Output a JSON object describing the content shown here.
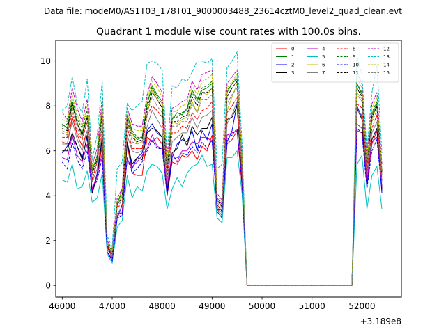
{
  "chart_data": {
    "type": "line",
    "suptitle": "Data file: modeM0/AS1T03_178T01_9000003488_23614cztM0_level2_quad_clean.evt",
    "title": "Quadrant 1 module wise count rates with 100.0s bins.",
    "xlabel": "",
    "ylabel": "",
    "offset_label": "+3.189e8",
    "xlim": [
      45870,
      52790
    ],
    "ylim": [
      -0.52,
      10.92
    ],
    "xticks": [
      46000,
      47000,
      48000,
      49000,
      50000,
      51000,
      52000
    ],
    "xtick_labels": [
      "46000",
      "47000",
      "48000",
      "49000",
      "50000",
      "51000",
      "52000"
    ],
    "yticks": [
      0,
      2,
      4,
      6,
      8,
      10
    ],
    "ytick_labels": [
      "0",
      "2",
      "4",
      "6",
      "8",
      "10"
    ],
    "grid": false,
    "legend_position": "top-right",
    "x_start": 46000,
    "x_step": 100,
    "gap_region": [
      49700,
      51700
    ],
    "series": [
      {
        "name": "0",
        "color": "#ff0000",
        "dash": "solid",
        "values": [
          6.4,
          6.3,
          7.5,
          6.7,
          6.2,
          6.9,
          4.2,
          5.0,
          6.2,
          1.8,
          1.2,
          3.1,
          3.1,
          6.3,
          5.0,
          4.9,
          4.9,
          6.6,
          6.4,
          6.6,
          6.3,
          4.0,
          5.5,
          5.4,
          5.8,
          5.7,
          6.0,
          5.6,
          6.2,
          6.0,
          6.7,
          3.4,
          3.1,
          6.3,
          6.5,
          6.9,
          4.4,
          0.0,
          0.0,
          0.0,
          0.0,
          0.0,
          0.0,
          0.0,
          0.0,
          0.0,
          0.0,
          0.0,
          0.0,
          0.0,
          0.0,
          0.0,
          0.0,
          0.0,
          0.0,
          0.0,
          0.0,
          0.0,
          0.0,
          7.2,
          7.0,
          4.5,
          6.3,
          6.9,
          4.4
        ]
      },
      {
        "name": "1",
        "color": "#008000",
        "dash": "solid",
        "values": [
          7.2,
          7.0,
          8.2,
          7.2,
          6.8,
          7.6,
          5.2,
          5.7,
          7.8,
          1.9,
          1.5,
          3.6,
          4.3,
          7.6,
          6.8,
          6.5,
          6.6,
          8.1,
          8.9,
          8.5,
          8.2,
          5.2,
          7.4,
          7.7,
          7.6,
          7.9,
          8.7,
          8.3,
          8.7,
          8.8,
          9.0,
          3.8,
          3.5,
          8.6,
          9.0,
          9.2,
          5.6,
          0.0,
          0.0,
          0.0,
          0.0,
          0.0,
          0.0,
          0.0,
          0.0,
          0.0,
          0.0,
          0.0,
          0.0,
          0.0,
          0.0,
          0.0,
          0.0,
          0.0,
          0.0,
          0.0,
          0.0,
          0.0,
          0.0,
          9.0,
          8.5,
          5.4,
          7.6,
          8.1,
          5.1
        ]
      },
      {
        "name": "2",
        "color": "#0000ff",
        "dash": "solid",
        "values": [
          5.9,
          6.2,
          6.6,
          6.2,
          5.7,
          6.6,
          4.1,
          5.0,
          6.6,
          1.5,
          1.1,
          3.0,
          3.6,
          6.4,
          5.2,
          5.7,
          5.9,
          6.9,
          7.2,
          6.8,
          6.6,
          4.1,
          5.7,
          6.3,
          6.5,
          6.4,
          6.9,
          6.0,
          6.9,
          6.5,
          7.2,
          3.3,
          3.0,
          6.4,
          6.9,
          8.1,
          4.6,
          0.0,
          0.0,
          0.0,
          0.0,
          0.0,
          0.0,
          0.0,
          0.0,
          0.0,
          0.0,
          0.0,
          0.0,
          0.0,
          0.0,
          0.0,
          0.0,
          0.0,
          0.0,
          0.0,
          0.0,
          0.0,
          0.0,
          8.0,
          7.5,
          4.6,
          6.5,
          7.0,
          4.1
        ]
      },
      {
        "name": "3",
        "color": "#000000",
        "dash": "solid",
        "values": [
          6.0,
          6.0,
          6.8,
          6.2,
          5.6,
          6.7,
          4.1,
          4.9,
          6.5,
          1.7,
          1.3,
          3.2,
          3.2,
          6.4,
          5.4,
          5.7,
          5.6,
          6.8,
          7.0,
          6.9,
          6.6,
          4.2,
          5.9,
          6.1,
          6.7,
          6.2,
          7.1,
          6.7,
          7.0,
          7.0,
          7.5,
          3.6,
          3.3,
          7.4,
          7.5,
          8.0,
          4.6,
          0.0,
          0.0,
          0.0,
          0.0,
          0.0,
          0.0,
          0.0,
          0.0,
          0.0,
          0.0,
          0.0,
          0.0,
          0.0,
          0.0,
          0.0,
          0.0,
          0.0,
          0.0,
          0.0,
          0.0,
          0.0,
          0.0,
          7.9,
          7.4,
          4.4,
          6.5,
          7.0,
          4.3
        ]
      },
      {
        "name": "4",
        "color": "#bf00bf",
        "dash": "solid",
        "values": [
          5.7,
          5.6,
          6.7,
          5.8,
          5.5,
          6.3,
          4.3,
          4.9,
          5.9,
          1.5,
          1.2,
          3.1,
          3.3,
          5.6,
          5.3,
          5.5,
          5.8,
          6.1,
          6.7,
          6.2,
          6.1,
          4.4,
          5.9,
          5.5,
          6.0,
          6.0,
          6.4,
          6.3,
          6.6,
          6.6,
          6.4,
          3.9,
          3.6,
          6.7,
          6.8,
          6.9,
          4.7,
          0.0,
          0.0,
          0.0,
          0.0,
          0.0,
          0.0,
          0.0,
          0.0,
          0.0,
          0.0,
          0.0,
          0.0,
          0.0,
          0.0,
          0.0,
          0.0,
          0.0,
          0.0,
          0.0,
          0.0,
          0.0,
          0.0,
          6.9,
          6.8,
          4.6,
          6.4,
          6.6,
          4.4
        ]
      },
      {
        "name": "5",
        "color": "#00bfbf",
        "dash": "solid",
        "values": [
          4.7,
          4.6,
          5.4,
          4.3,
          4.4,
          5.1,
          3.7,
          3.9,
          5.0,
          1.4,
          1.0,
          2.6,
          2.9,
          4.9,
          3.9,
          4.4,
          4.2,
          5.1,
          5.4,
          5.3,
          5.0,
          3.4,
          4.3,
          4.8,
          4.4,
          5.0,
          5.3,
          5.4,
          5.8,
          5.3,
          5.4,
          3.0,
          2.8,
          5.7,
          5.7,
          6.0,
          4.1,
          0.0,
          0.0,
          0.0,
          0.0,
          0.0,
          0.0,
          0.0,
          0.0,
          0.0,
          0.0,
          0.0,
          0.0,
          0.0,
          0.0,
          0.0,
          0.0,
          0.0,
          0.0,
          0.0,
          0.0,
          0.0,
          0.0,
          5.4,
          5.8,
          3.4,
          4.9,
          5.3,
          3.4
        ]
      },
      {
        "name": "6",
        "color": "#bfbf00",
        "dash": "solid",
        "values": [
          6.9,
          6.8,
          8.0,
          7.3,
          6.6,
          7.6,
          5.2,
          5.6,
          7.8,
          1.8,
          1.4,
          3.6,
          4.0,
          7.2,
          6.8,
          6.3,
          6.4,
          7.6,
          8.7,
          8.3,
          7.9,
          5.2,
          7.3,
          7.2,
          7.4,
          7.5,
          8.2,
          7.7,
          8.6,
          8.5,
          8.8,
          3.8,
          3.5,
          7.8,
          8.4,
          9.0,
          5.5,
          0.0,
          0.0,
          0.0,
          0.0,
          0.0,
          0.0,
          0.0,
          0.0,
          0.0,
          0.0,
          0.0,
          0.0,
          0.0,
          0.0,
          0.0,
          0.0,
          0.0,
          0.0,
          0.0,
          0.0,
          0.0,
          0.0,
          8.6,
          8.3,
          5.3,
          7.4,
          8.0,
          4.9
        ]
      },
      {
        "name": "7",
        "color": "#808080",
        "dash": "solid",
        "values": [
          6.3,
          6.3,
          7.3,
          6.5,
          6.0,
          6.9,
          4.6,
          5.2,
          6.8,
          1.6,
          1.3,
          3.2,
          3.5,
          6.7,
          6.0,
          5.9,
          6.0,
          7.1,
          7.8,
          7.4,
          7.0,
          4.6,
          6.4,
          6.6,
          6.8,
          6.8,
          7.5,
          7.0,
          7.5,
          7.6,
          7.8,
          3.5,
          3.2,
          7.2,
          7.6,
          8.2,
          5.0,
          0.0,
          0.0,
          0.0,
          0.0,
          0.0,
          0.0,
          0.0,
          0.0,
          0.0,
          0.0,
          0.0,
          0.0,
          0.0,
          0.0,
          0.0,
          0.0,
          0.0,
          0.0,
          0.0,
          0.0,
          0.0,
          0.0,
          7.8,
          7.6,
          4.9,
          6.8,
          7.3,
          4.6
        ]
      },
      {
        "name": "8",
        "color": "#ff0000",
        "dash": "dashed",
        "values": [
          6.6,
          6.6,
          7.7,
          6.8,
          6.5,
          7.3,
          4.7,
          5.5,
          7.1,
          1.7,
          1.4,
          3.5,
          3.6,
          7.1,
          6.1,
          6.1,
          6.1,
          7.6,
          8.0,
          7.8,
          7.5,
          4.8,
          6.8,
          6.8,
          7.1,
          7.0,
          7.7,
          7.4,
          7.8,
          7.9,
          8.2,
          3.6,
          3.3,
          7.7,
          8.0,
          8.4,
          5.1,
          0.0,
          0.0,
          0.0,
          0.0,
          0.0,
          0.0,
          0.0,
          0.0,
          0.0,
          0.0,
          0.0,
          0.0,
          0.0,
          0.0,
          0.0,
          0.0,
          0.0,
          0.0,
          0.0,
          0.0,
          0.0,
          0.0,
          8.1,
          7.9,
          5.0,
          7.0,
          7.6,
          4.7
        ]
      },
      {
        "name": "9",
        "color": "#008000",
        "dash": "dashed",
        "values": [
          7.1,
          7.2,
          8.3,
          7.4,
          7.0,
          7.8,
          5.1,
          5.8,
          7.9,
          1.9,
          1.5,
          3.7,
          4.1,
          7.6,
          6.9,
          6.6,
          6.6,
          8.1,
          8.8,
          8.4,
          8.1,
          5.3,
          7.5,
          7.5,
          7.7,
          7.8,
          8.6,
          8.2,
          8.8,
          8.9,
          9.1,
          3.9,
          3.6,
          8.7,
          9.0,
          9.3,
          5.6,
          0.0,
          0.0,
          0.0,
          0.0,
          0.0,
          0.0,
          0.0,
          0.0,
          0.0,
          0.0,
          0.0,
          0.0,
          0.0,
          0.0,
          0.0,
          0.0,
          0.0,
          0.0,
          0.0,
          0.0,
          0.0,
          0.0,
          9.0,
          8.6,
          5.4,
          7.7,
          8.2,
          5.1
        ]
      },
      {
        "name": "10",
        "color": "#0000ff",
        "dash": "dashed",
        "values": [
          5.5,
          5.2,
          6.4,
          5.6,
          5.2,
          6.0,
          4.2,
          4.7,
          5.7,
          1.5,
          1.1,
          3.0,
          3.1,
          5.7,
          5.0,
          5.2,
          5.5,
          6.0,
          6.5,
          6.1,
          6.1,
          4.0,
          5.6,
          5.7,
          5.9,
          5.8,
          6.2,
          5.9,
          6.4,
          6.1,
          6.5,
          3.4,
          3.3,
          6.5,
          6.7,
          7.0,
          4.5,
          0.0,
          0.0,
          0.0,
          0.0,
          0.0,
          0.0,
          0.0,
          0.0,
          0.0,
          0.0,
          0.0,
          0.0,
          0.0,
          0.0,
          0.0,
          0.0,
          0.0,
          0.0,
          0.0,
          0.0,
          0.0,
          0.0,
          7.0,
          6.8,
          4.3,
          6.0,
          6.5,
          4.2
        ]
      },
      {
        "name": "11",
        "color": "#000000",
        "dash": "dashed",
        "values": [
          7.0,
          6.9,
          8.1,
          7.2,
          6.7,
          7.5,
          5.0,
          5.6,
          7.6,
          1.8,
          1.4,
          3.6,
          3.9,
          7.4,
          6.6,
          6.4,
          6.5,
          7.9,
          8.6,
          8.3,
          7.9,
          5.1,
          7.3,
          7.3,
          7.5,
          7.6,
          8.4,
          8.0,
          8.6,
          8.6,
          8.8,
          3.8,
          3.5,
          8.4,
          8.8,
          9.1,
          5.4,
          0.0,
          0.0,
          0.0,
          0.0,
          0.0,
          0.0,
          0.0,
          0.0,
          0.0,
          0.0,
          0.0,
          0.0,
          0.0,
          0.0,
          0.0,
          0.0,
          0.0,
          0.0,
          0.0,
          0.0,
          0.0,
          0.0,
          8.8,
          8.4,
          5.3,
          7.5,
          8.0,
          5.0
        ]
      },
      {
        "name": "12",
        "color": "#bf00bf",
        "dash": "dashed",
        "values": [
          7.7,
          7.4,
          8.8,
          7.9,
          7.3,
          8.3,
          5.4,
          6.1,
          8.4,
          2.0,
          1.6,
          3.9,
          4.3,
          7.9,
          7.2,
          7.1,
          7.1,
          8.5,
          9.3,
          9.0,
          8.6,
          5.5,
          7.9,
          8.0,
          8.2,
          8.3,
          9.1,
          8.7,
          9.4,
          9.5,
          9.6,
          4.1,
          3.8,
          9.0,
          9.3,
          9.6,
          5.8,
          0.0,
          0.0,
          0.0,
          0.0,
          0.0,
          0.0,
          0.0,
          0.0,
          0.0,
          0.0,
          0.0,
          0.0,
          0.0,
          0.0,
          0.0,
          0.0,
          0.0,
          0.0,
          0.0,
          0.0,
          0.0,
          0.0,
          9.5,
          9.0,
          5.7,
          8.1,
          8.6,
          5.4
        ]
      },
      {
        "name": "13",
        "color": "#00bfbf",
        "dash": "dashed",
        "values": [
          7.8,
          8.0,
          9.3,
          8.1,
          7.7,
          9.2,
          5.6,
          6.7,
          9.1,
          2.2,
          1.7,
          5.2,
          5.5,
          8.1,
          7.8,
          8.0,
          8.2,
          9.9,
          10.0,
          9.9,
          9.6,
          5.8,
          8.9,
          8.8,
          9.2,
          9.1,
          9.5,
          10.0,
          10.0,
          9.9,
          10.1,
          5.2,
          5.4,
          9.7,
          10.0,
          10.4,
          6.3,
          0.0,
          0.0,
          0.0,
          0.0,
          0.0,
          0.0,
          0.0,
          0.0,
          0.0,
          0.0,
          0.0,
          0.0,
          0.0,
          0.0,
          0.0,
          0.0,
          0.0,
          0.0,
          0.0,
          0.0,
          0.0,
          0.0,
          10.2,
          9.4,
          6.0,
          8.6,
          9.8,
          5.9
        ]
      },
      {
        "name": "14",
        "color": "#bfbf00",
        "dash": "dashed",
        "values": [
          7.4,
          7.3,
          8.5,
          7.6,
          7.1,
          8.0,
          5.3,
          6.0,
          8.1,
          1.9,
          1.5,
          3.8,
          4.2,
          7.8,
          7.0,
          6.9,
          6.9,
          8.3,
          9.1,
          8.8,
          8.4,
          5.4,
          7.7,
          7.8,
          8.0,
          8.1,
          8.9,
          8.5,
          9.1,
          9.2,
          9.4,
          4.0,
          3.7,
          8.8,
          9.1,
          9.4,
          5.7,
          0.0,
          0.0,
          0.0,
          0.0,
          0.0,
          0.0,
          0.0,
          0.0,
          0.0,
          0.0,
          0.0,
          0.0,
          0.0,
          0.0,
          0.0,
          0.0,
          0.0,
          0.0,
          0.0,
          0.0,
          0.0,
          0.0,
          9.3,
          8.8,
          5.5,
          7.9,
          8.4,
          5.2
        ]
      },
      {
        "name": "15",
        "color": "#808080",
        "dash": "dashed",
        "values": [
          6.8,
          6.7,
          7.9,
          7.0,
          6.6,
          7.4,
          4.9,
          5.5,
          7.4,
          1.8,
          1.4,
          3.5,
          3.8,
          7.3,
          6.4,
          6.3,
          6.4,
          7.7,
          8.4,
          8.0,
          7.7,
          5.0,
          7.1,
          7.1,
          7.3,
          7.3,
          8.1,
          7.7,
          8.3,
          8.3,
          8.5,
          3.7,
          3.4,
          8.1,
          8.5,
          8.8,
          5.3,
          0.0,
          0.0,
          0.0,
          0.0,
          0.0,
          0.0,
          0.0,
          0.0,
          0.0,
          0.0,
          0.0,
          0.0,
          0.0,
          0.0,
          0.0,
          0.0,
          0.0,
          0.0,
          0.0,
          0.0,
          0.0,
          0.0,
          8.5,
          8.2,
          5.2,
          7.3,
          7.8,
          4.9
        ]
      }
    ]
  }
}
